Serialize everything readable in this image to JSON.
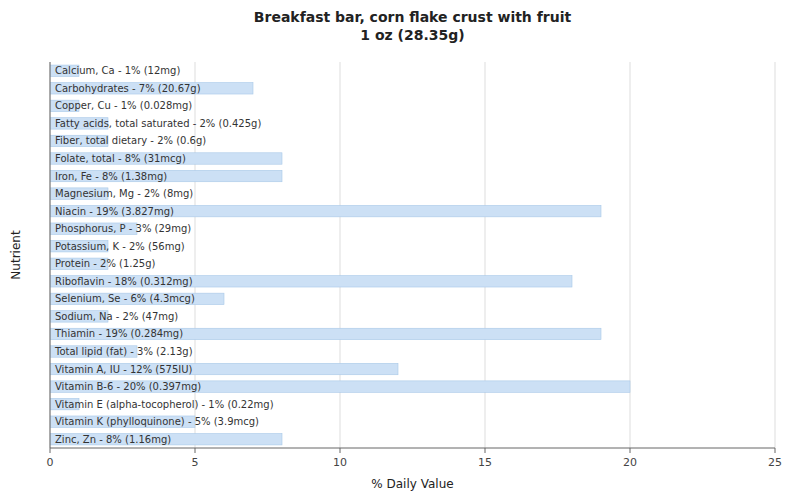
{
  "chart_data": {
    "type": "bar",
    "orientation": "horizontal",
    "title": "Breakfast bar, corn flake crust with fruit\n1 oz (28.35g)",
    "x_label": "% Daily Value",
    "y_label": "Nutrient",
    "categories": [
      "Calcium, Ca - 1% (12mg)",
      "Carbohydrates - 7% (20.67g)",
      "Copper, Cu - 1% (0.028mg)",
      "Fatty acids, total saturated - 2% (0.425g)",
      "Fiber, total dietary - 2% (0.6g)",
      "Folate, total - 8% (31mcg)",
      "Iron, Fe - 8% (1.38mg)",
      "Magnesium, Mg - 2% (8mg)",
      "Niacin - 19% (3.827mg)",
      "Phosphorus, P - 3% (29mg)",
      "Potassium, K - 2% (56mg)",
      "Protein - 2% (1.25g)",
      "Riboflavin - 18% (0.312mg)",
      "Selenium, Se - 6% (4.3mcg)",
      "Sodium, Na - 2% (47mg)",
      "Thiamin - 19% (0.284mg)",
      "Total lipid (fat) - 3% (2.13g)",
      "Vitamin A, IU - 12% (575IU)",
      "Vitamin B-6 - 20% (0.397mg)",
      "Vitamin E (alpha-tocopherol) - 1% (0.22mg)",
      "Vitamin K (phylloquinone) - 5% (3.9mcg)",
      "Zinc, Zn - 8% (1.16mg)"
    ],
    "values": [
      1,
      7,
      1,
      2,
      2,
      8,
      8,
      2,
      19,
      3,
      2,
      2,
      18,
      6,
      2,
      19,
      3,
      12,
      20,
      1,
      5,
      8
    ],
    "color": "#cce0f5",
    "xlim": [
      0,
      25
    ],
    "xticks": [
      0,
      5,
      10,
      15,
      20,
      25
    ],
    "grid": true,
    "tick_labels": "x"
  }
}
